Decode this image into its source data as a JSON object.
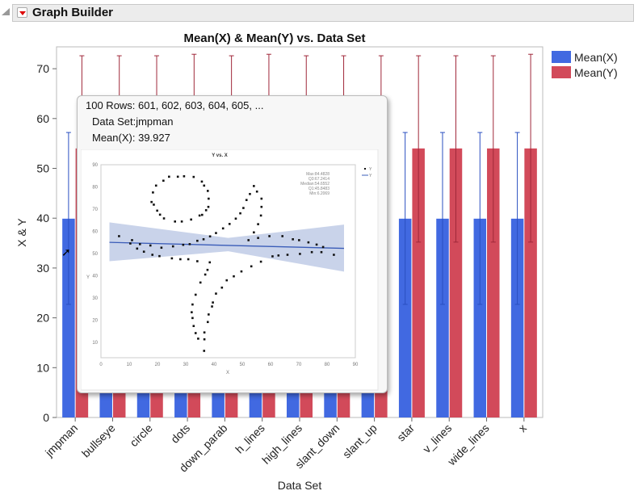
{
  "header": {
    "title": "Graph Builder"
  },
  "legend": [
    {
      "label": "Mean(X)",
      "color": "#4169e1"
    },
    {
      "label": "Mean(Y)",
      "color": "#d24a5a"
    }
  ],
  "chart_data": {
    "type": "bar",
    "title": "Mean(X) & Mean(Y) vs. Data Set",
    "xlabel": "Data Set",
    "ylabel": "X & Y",
    "ylim": [
      0,
      74
    ],
    "yticks": [
      0,
      10,
      20,
      30,
      40,
      50,
      60,
      70
    ],
    "categories": [
      "jmpman",
      "bullseye",
      "circle",
      "dots",
      "down_parab",
      "h_lines",
      "high_lines",
      "slant_down",
      "slant_up",
      "star",
      "v_lines",
      "wide_lines",
      "x"
    ],
    "series": [
      {
        "name": "Mean(X)",
        "color": "#4169e1",
        "values": [
          39.9,
          39.9,
          39.9,
          39.9,
          39.9,
          39.9,
          39.9,
          39.9,
          39.9,
          39.9,
          39.9,
          39.9,
          39.9
        ],
        "err_low": [
          22.7,
          22.7,
          22.7,
          22.7,
          22.7,
          22.7,
          22.7,
          22.7,
          22.7,
          22.7,
          22.7,
          22.7,
          22.7
        ],
        "err_high": [
          57.2,
          57.2,
          57.2,
          57.2,
          57.2,
          57.2,
          57.2,
          57.2,
          57.2,
          57.2,
          57.2,
          57.2,
          57.2
        ]
      },
      {
        "name": "Mean(Y)",
        "color": "#d24a5a",
        "values": [
          54.0,
          54.0,
          54.0,
          54.0,
          54.0,
          54.0,
          54.0,
          54.0,
          54.0,
          54.0,
          54.0,
          54.0,
          54.0
        ],
        "err_low": [
          35.2,
          35.2,
          35.2,
          35.2,
          35.2,
          35.2,
          35.2,
          35.2,
          35.2,
          35.2,
          35.2,
          35.2,
          35.2
        ],
        "err_high": [
          72.6,
          72.6,
          72.6,
          72.9,
          72.6,
          72.9,
          72.6,
          72.6,
          72.6,
          72.6,
          72.6,
          72.6,
          72.9
        ]
      }
    ]
  },
  "tooltip": {
    "rows": "100 Rows:  601, 602, 603, 604, 605, ...",
    "dataset_label": "Data Set:",
    "dataset_value": "jmpman",
    "meanx_label": "Mean(X):",
    "meanx_value": "39.927",
    "chart_data": {
      "type": "scatter",
      "title": "Y vs. X",
      "xlabel": "X",
      "ylabel": "Y",
      "xlim": [
        0,
        90
      ],
      "ylim": [
        3,
        90
      ],
      "xticks": [
        0,
        10,
        20,
        30,
        40,
        50,
        60,
        70,
        80,
        90
      ],
      "yticks": [
        10,
        20,
        30,
        40,
        50,
        60,
        70,
        80,
        90
      ],
      "legend": [
        "Y",
        "Y"
      ],
      "stats": [
        "Max:84.4828",
        "Q3:67.2414",
        "Median:54.6552",
        "Q1:45.8483",
        "Min:6.2069"
      ],
      "fit": {
        "x": [
          3,
          86
        ],
        "y": [
          55,
          52.3
        ],
        "band_low": [
          [
            3,
            46.5
          ],
          [
            45,
            51
          ],
          [
            86,
            41.8
          ]
        ],
        "band_high": [
          [
            3,
            64
          ],
          [
            45,
            57
          ],
          [
            86,
            63
          ]
        ]
      },
      "points": [
        [
          6.4,
          57.8
        ],
        [
          10.4,
          54.5
        ],
        [
          11,
          56
        ],
        [
          12.8,
          52.2
        ],
        [
          13.8,
          54.2
        ],
        [
          15.2,
          50.8
        ],
        [
          17.5,
          53.6
        ],
        [
          18.2,
          49.4
        ],
        [
          20.7,
          48.8
        ],
        [
          21.4,
          52.6
        ],
        [
          25.1,
          47.8
        ],
        [
          25.5,
          53.2
        ],
        [
          28.1,
          47.4
        ],
        [
          29.1,
          53.9
        ],
        [
          30.9,
          47.4
        ],
        [
          31.4,
          54.2
        ],
        [
          34.1,
          46.5
        ],
        [
          34.1,
          55.7
        ],
        [
          36.3,
          56.4
        ],
        [
          38.6,
          57.7
        ],
        [
          38.5,
          46
        ],
        [
          40.7,
          59.2
        ],
        [
          43.2,
          61.3
        ],
        [
          45.5,
          63.3
        ],
        [
          47.7,
          65.7
        ],
        [
          49.3,
          68.1
        ],
        [
          50.4,
          70.5
        ],
        [
          51.5,
          74.1
        ],
        [
          52.7,
          76.8
        ],
        [
          54.1,
          80.4
        ],
        [
          55.2,
          77.9
        ],
        [
          56.8,
          74.7
        ],
        [
          56.8,
          71
        ],
        [
          56.6,
          67.1
        ],
        [
          55.6,
          63.2
        ],
        [
          54.1,
          59.5
        ],
        [
          55.6,
          57
        ],
        [
          52.2,
          56
        ],
        [
          56.6,
          46.3
        ],
        [
          53.2,
          44.2
        ],
        [
          49.7,
          41.9
        ],
        [
          47,
          39.7
        ],
        [
          44.5,
          37.9
        ],
        [
          42.8,
          34.6
        ],
        [
          40.7,
          31.9
        ],
        [
          39.6,
          27.9
        ],
        [
          39.3,
          26.1
        ],
        [
          38.1,
          22.5
        ],
        [
          37.8,
          19.1
        ],
        [
          36.6,
          11.3
        ],
        [
          36.5,
          6.1
        ],
        [
          36.6,
          14.4
        ],
        [
          34.4,
          11.6
        ],
        [
          33.5,
          14.1
        ],
        [
          32.8,
          17.3
        ],
        [
          32.4,
          20.9
        ],
        [
          32.1,
          23.5
        ],
        [
          32.4,
          27
        ],
        [
          33.5,
          31.4
        ],
        [
          35.2,
          36.9
        ],
        [
          36.9,
          40.5
        ],
        [
          37.7,
          42.6
        ],
        [
          59.6,
          57.8
        ],
        [
          60.7,
          48.7
        ],
        [
          62.8,
          49.1
        ],
        [
          64.2,
          57.8
        ],
        [
          66,
          49.4
        ],
        [
          67.9,
          56.4
        ],
        [
          70.1,
          56
        ],
        [
          70.4,
          49.8
        ],
        [
          73.4,
          55
        ],
        [
          74.6,
          50.6
        ],
        [
          76.3,
          54
        ],
        [
          78,
          50.6
        ],
        [
          78.6,
          52.9
        ],
        [
          82.4,
          49.4
        ],
        [
          18.4,
          77.5
        ],
        [
          17.9,
          73.2
        ],
        [
          18.7,
          72
        ],
        [
          19.5,
          80.6
        ],
        [
          19.9,
          69.3
        ],
        [
          20.9,
          67.5
        ],
        [
          22.1,
          82.8
        ],
        [
          22.3,
          65.8
        ],
        [
          24.1,
          84.6
        ],
        [
          26.2,
          64.4
        ],
        [
          27.2,
          84.6
        ],
        [
          28.6,
          64.4
        ],
        [
          29.4,
          84.8
        ],
        [
          31.9,
          65.3
        ],
        [
          32.8,
          84.5
        ],
        [
          34.9,
          67.1
        ],
        [
          35.7,
          82.4
        ],
        [
          35.8,
          67.4
        ],
        [
          36.5,
          80.6
        ],
        [
          37.2,
          69.5
        ],
        [
          37.8,
          78.2
        ],
        [
          38,
          71
        ],
        [
          38.1,
          74.7
        ]
      ]
    }
  }
}
